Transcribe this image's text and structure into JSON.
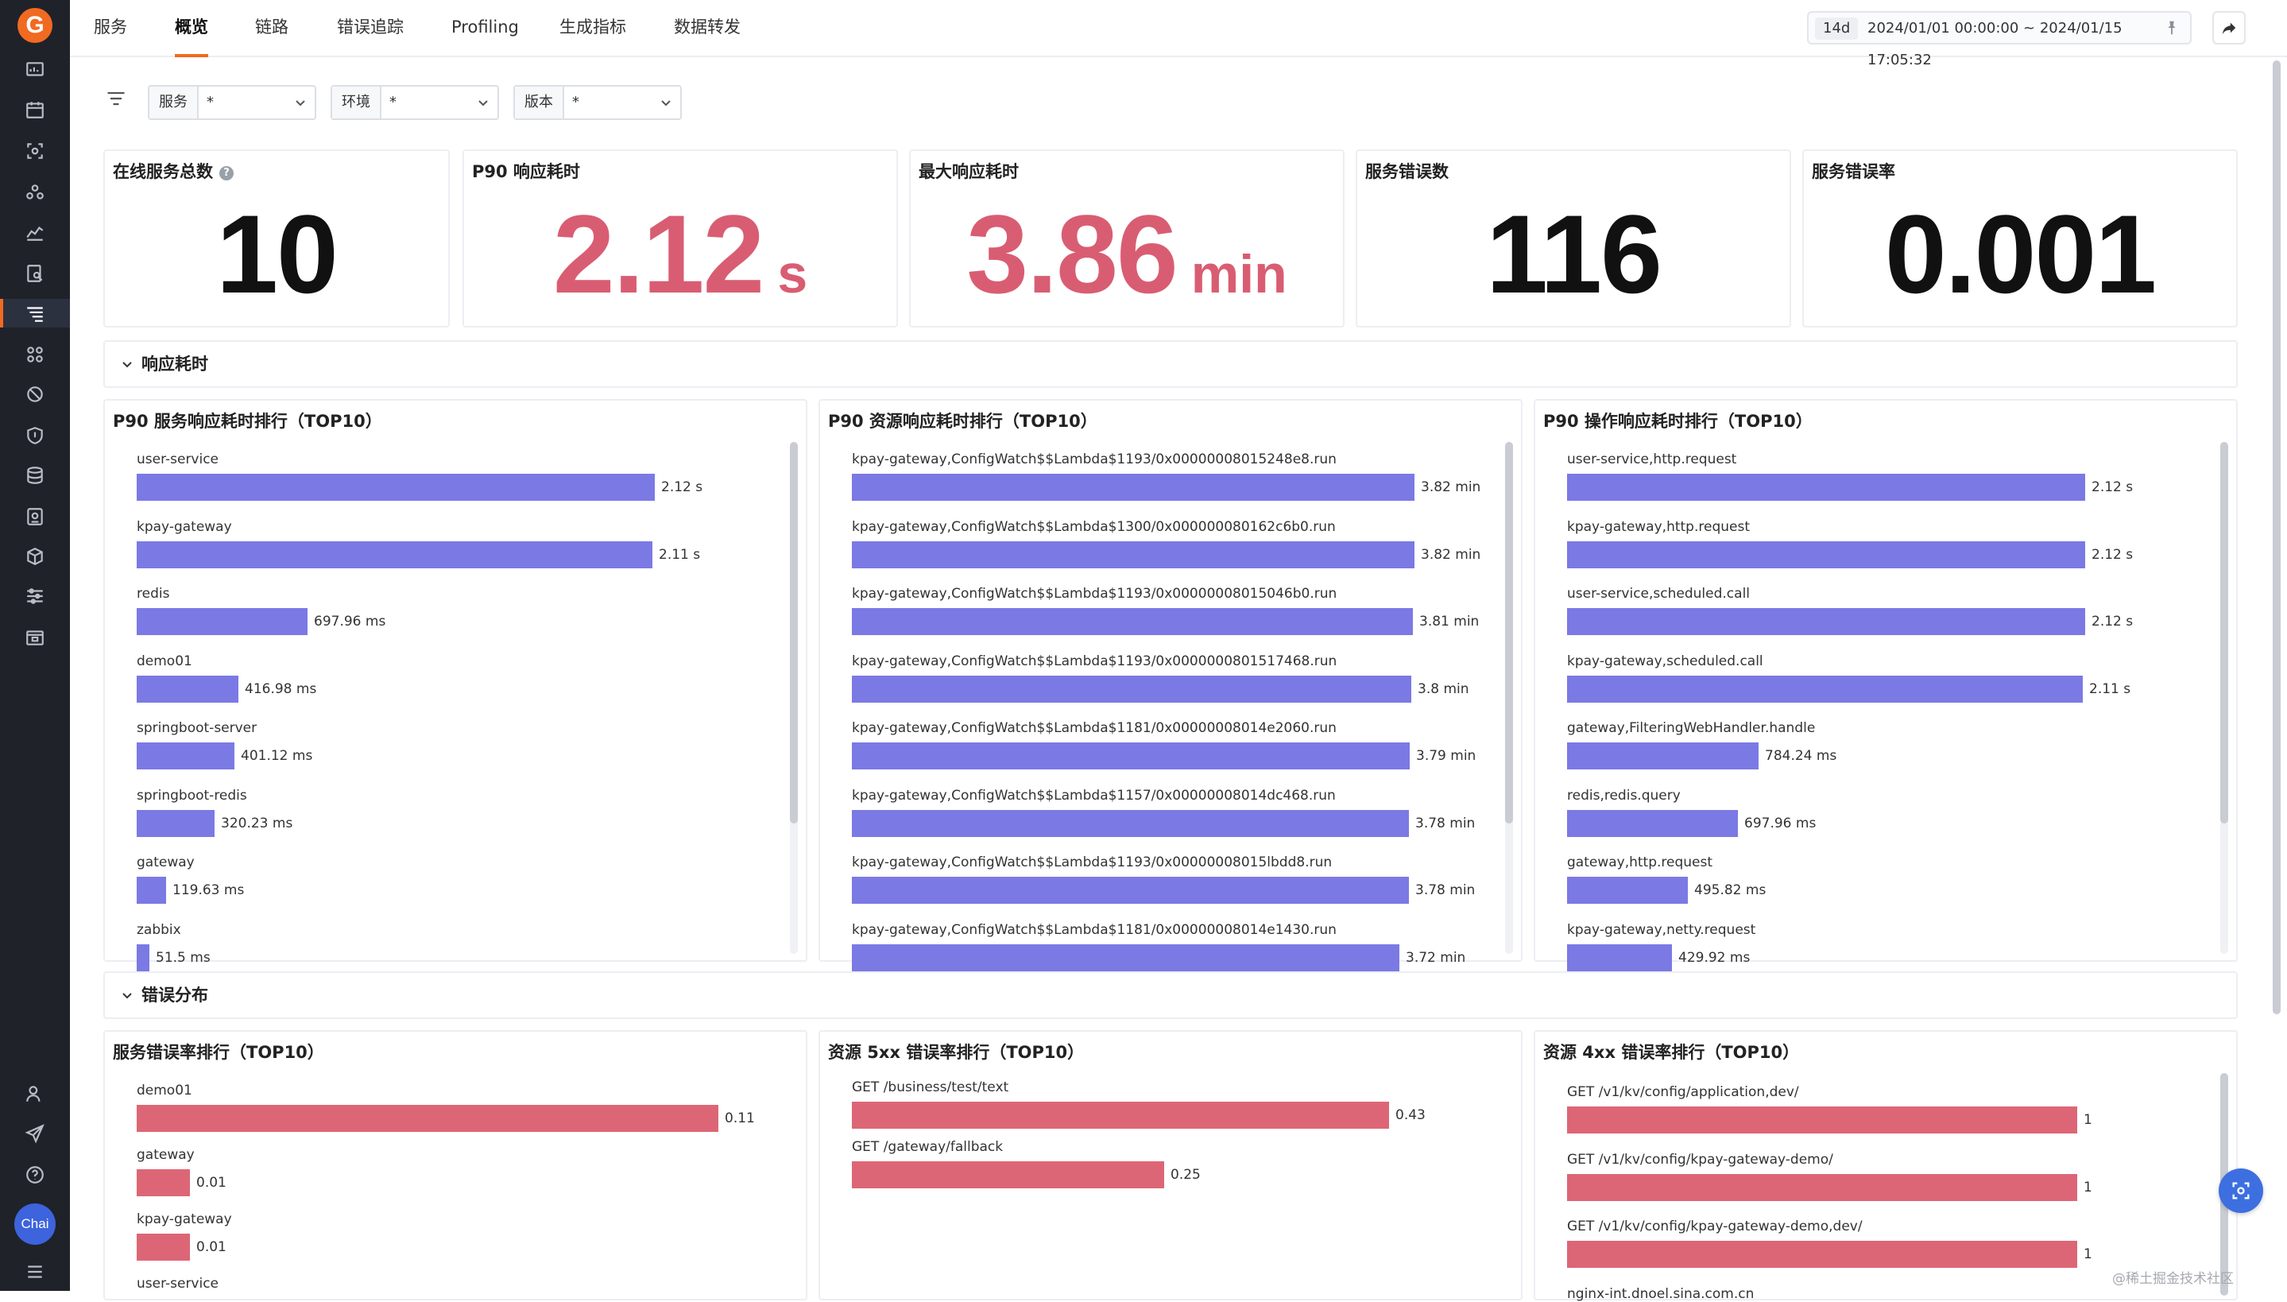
{
  "nav": {
    "tabs": [
      {
        "label": "服务",
        "active": false
      },
      {
        "label": "概览",
        "active": true
      },
      {
        "label": "链路",
        "active": false
      },
      {
        "label": "错误追踪",
        "active": false
      },
      {
        "label": "Profiling",
        "active": false
      },
      {
        "label": "生成指标",
        "active": false
      },
      {
        "label": "数据转发",
        "active": false
      }
    ],
    "time_range_tag": "14d",
    "time_range": "2024/01/01 00:00:00 ~ 2024/01/15 17:05:32"
  },
  "sidebar": {
    "avatar_text": "Chai"
  },
  "filters": [
    {
      "label": "服务",
      "value": "*"
    },
    {
      "label": "环境",
      "value": "*"
    },
    {
      "label": "版本",
      "value": "*"
    }
  ],
  "stats": [
    {
      "title": "在线服务总数",
      "value": "10",
      "unit": "",
      "color": "#111111",
      "help": "?"
    },
    {
      "title": "P90 响应耗时",
      "value": "2.12",
      "unit": "s",
      "color": "#d95d72"
    },
    {
      "title": "最大响应耗时",
      "value": "3.86",
      "unit": "min",
      "color": "#d95d72"
    },
    {
      "title": "服务错误数",
      "value": "116",
      "unit": "",
      "color": "#111111"
    },
    {
      "title": "服务错误率",
      "value": "0.001",
      "unit": "",
      "color": "#111111"
    }
  ],
  "sections": {
    "latency": "响应耗时",
    "errors": "错误分布"
  },
  "chart_data": [
    {
      "type": "bar",
      "orientation": "horizontal",
      "title": "P90 服务响应耗时排行（TOP10）",
      "unit": "ms",
      "color": "#7b79e4",
      "categories": [
        "user-service",
        "kpay-gateway",
        "redis",
        "demo01",
        "springboot-server",
        "springboot-redis",
        "gateway",
        "zabbix"
      ],
      "values": [
        2120,
        2110,
        697.96,
        416.98,
        401.12,
        320.23,
        119.63,
        51.5
      ],
      "labels": [
        "2.12 s",
        "2.11 s",
        "697.96 ms",
        "416.98 ms",
        "401.12 ms",
        "320.23 ms",
        "119.63 ms",
        "51.5 ms"
      ]
    },
    {
      "type": "bar",
      "orientation": "horizontal",
      "title": "P90 资源响应耗时排行（TOP10）",
      "unit": "min",
      "color": "#7b79e4",
      "categories": [
        "kpay-gateway,ConfigWatch$$Lambda$1193/0x00000008015248e8.run",
        "kpay-gateway,ConfigWatch$$Lambda$1300/0x000000080162c6b0.run",
        "kpay-gateway,ConfigWatch$$Lambda$1193/0x00000008015046b0.run",
        "kpay-gateway,ConfigWatch$$Lambda$1193/0x0000000801517468.run",
        "kpay-gateway,ConfigWatch$$Lambda$1181/0x00000008014e2060.run",
        "kpay-gateway,ConfigWatch$$Lambda$1157/0x00000008014dc468.run",
        "kpay-gateway,ConfigWatch$$Lambda$1193/0x00000008015lbdd8.run",
        "kpay-gateway,ConfigWatch$$Lambda$1181/0x00000008014e1430.run"
      ],
      "values": [
        3.82,
        3.82,
        3.81,
        3.8,
        3.79,
        3.78,
        3.78,
        3.72
      ],
      "labels": [
        "3.82 min",
        "3.82 min",
        "3.81 min",
        "3.8 min",
        "3.79 min",
        "3.78 min",
        "3.78 min",
        "3.72 min"
      ]
    },
    {
      "type": "bar",
      "orientation": "horizontal",
      "title": "P90 操作响应耗时排行（TOP10）",
      "unit": "ms",
      "color": "#7b79e4",
      "categories": [
        "user-service,http.request",
        "kpay-gateway,http.request",
        "user-service,scheduled.call",
        "kpay-gateway,scheduled.call",
        "gateway,FilteringWebHandler.handle",
        "redis,redis.query",
        "gateway,http.request",
        "kpay-gateway,netty.request"
      ],
      "values": [
        2120,
        2120,
        2120,
        2110,
        784.24,
        697.96,
        495.82,
        429.92
      ],
      "labels": [
        "2.12 s",
        "2.12 s",
        "2.12 s",
        "2.11 s",
        "784.24 ms",
        "697.96 ms",
        "495.82 ms",
        "429.92 ms"
      ]
    },
    {
      "type": "bar",
      "orientation": "horizontal",
      "title": "服务错误率排行（TOP10）",
      "color": "#dd6676",
      "categories": [
        "demo01",
        "gateway",
        "kpay-gateway",
        "user-service"
      ],
      "values": [
        0.11,
        0.01,
        0.01,
        null
      ],
      "labels": [
        "0.11",
        "0.01",
        "0.01",
        ""
      ]
    },
    {
      "type": "bar",
      "orientation": "horizontal",
      "title": "资源 5xx 错误率排行（TOP10）",
      "color": "#dd6676",
      "categories": [
        "GET /business/test/text",
        "GET /gateway/fallback"
      ],
      "values": [
        0.43,
        0.25
      ],
      "labels": [
        "0.43",
        "0.25"
      ]
    },
    {
      "type": "bar",
      "orientation": "horizontal",
      "title": "资源 4xx 错误率排行（TOP10）",
      "color": "#dd6676",
      "categories": [
        "GET /v1/kv/config/application,dev/",
        "GET /v1/kv/config/kpay-gateway-demo/",
        "GET /v1/kv/config/kpay-gateway-demo,dev/",
        "nginx-int.dnoel.sina.com.cn"
      ],
      "values": [
        1,
        1,
        1,
        null
      ],
      "labels": [
        "1",
        "1",
        "1",
        ""
      ]
    }
  ],
  "watermark": "@稀土掘金技术社区"
}
